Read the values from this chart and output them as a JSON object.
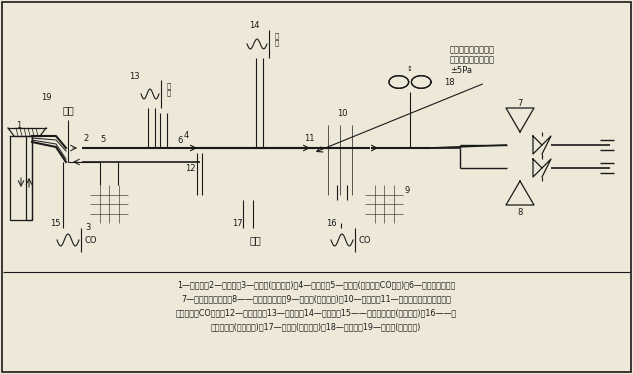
{
  "bg_color": "#ede8d8",
  "line_color": "#1a1a1a",
  "caption_lines": [
    "1—呼吸机；2—单向阀；3—增湿器(呼出空气)；4—联接器；5—采样口(吸人空气CO含量)；6—压力探针小孔；",
    "7—试验空气流量计；8——氧化碗流量计；9—增湿器(试验空气)；10—试验笱；11—采样口，在过滤装置进口",
    "试验空气的CO含量；12—试验样品；13—压力计；14—温度计；15——氧化碗分析价(吸人空气)；16——氧",
    "化碗分析价(试验空气)；17—湿度计(试验空气)；18—排气口；19—湿度计(吸人空气)"
  ],
  "annotation": "过滤装置进口相对试\n验室环境的最大压差\n±5Pa"
}
